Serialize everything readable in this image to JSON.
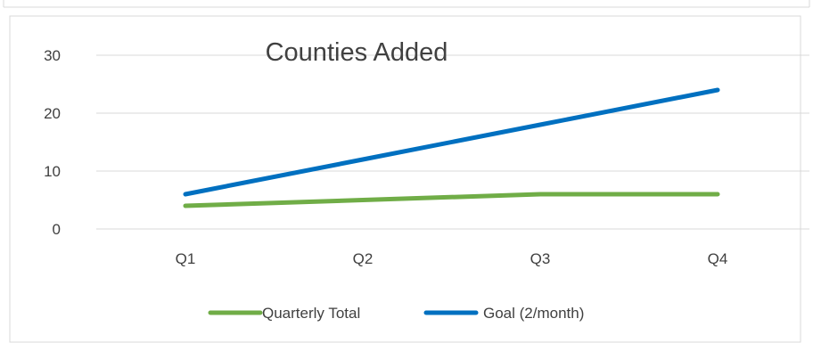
{
  "chart_data": {
    "type": "line",
    "title": "Counties Added",
    "xlabel": "",
    "ylabel": "",
    "categories": [
      "Q1",
      "Q2",
      "Q3",
      "Q4"
    ],
    "ylim": [
      0,
      30
    ],
    "yticks": [
      0,
      10,
      20,
      30
    ],
    "grid": "horizontal-major",
    "legend": "bottom",
    "series": [
      {
        "name": "Quarterly Total",
        "values": [
          4,
          5,
          6,
          6
        ],
        "color": "#70ad47"
      },
      {
        "name": "Goal (2/month)",
        "values": [
          6,
          12,
          18,
          24
        ],
        "color": "#0070c0"
      }
    ]
  },
  "colors": {
    "gridline": "#d9d9d9",
    "frame": "#d9d9d9",
    "text": "#404040"
  }
}
